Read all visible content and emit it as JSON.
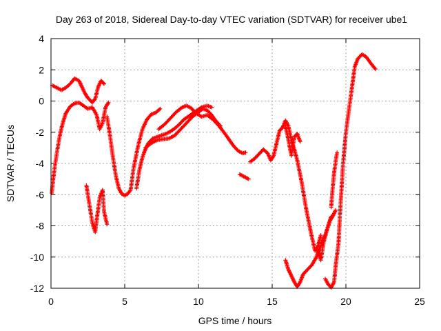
{
  "chart_data": {
    "type": "scatter",
    "title": "Day 263 of 2018, Sidereal Day-to-day VTEC variation (SDTVAR) for receiver ube1",
    "xlabel": "GPS time / hours",
    "ylabel": "SDTVAR / TECUs",
    "xlim": [
      0,
      25
    ],
    "ylim": [
      -12,
      4
    ],
    "xticks": [
      0,
      5,
      10,
      15,
      20,
      25
    ],
    "yticks": [
      -12,
      -10,
      -8,
      -6,
      -4,
      -2,
      0,
      2,
      4
    ],
    "xtick_labels": [
      "0",
      "5",
      "10",
      "15",
      "20",
      "25"
    ],
    "ytick_labels": [
      "-12",
      "-10",
      "-8",
      "-6",
      "-4",
      "-2",
      "0",
      "2",
      "4"
    ],
    "grid": true,
    "marker": "+",
    "color": "#ff0000",
    "series": [
      {
        "x": [
          0.1,
          0.4,
          0.7,
          1.0,
          1.3,
          1.6,
          1.9,
          2.1,
          2.3,
          2.5,
          2.8,
          3.0,
          3.2,
          3.4,
          3.6
        ],
        "y": [
          1.0,
          0.85,
          0.7,
          0.85,
          1.1,
          1.45,
          1.3,
          0.9,
          0.5,
          0.2,
          -0.1,
          0.15,
          0.9,
          1.3,
          1.1
        ]
      },
      {
        "x": [
          0.05,
          0.2,
          0.4,
          0.6,
          0.8,
          1.0,
          1.3,
          1.6,
          1.9,
          2.2,
          2.5,
          2.8,
          3.1,
          3.3,
          3.5,
          3.7,
          3.9
        ],
        "y": [
          -5.9,
          -4.6,
          -3.3,
          -2.2,
          -1.4,
          -0.8,
          -0.35,
          -0.15,
          -0.1,
          -0.3,
          -0.5,
          -0.4,
          -0.9,
          -1.8,
          -1.4,
          -0.4,
          -0.1
        ]
      },
      {
        "x": [
          3.8,
          4.0,
          4.2,
          4.4,
          4.6,
          4.8,
          5.0,
          5.2,
          5.4,
          5.6,
          5.9,
          6.2,
          6.5,
          6.8,
          7.1,
          7.4
        ],
        "y": [
          -1.0,
          -2.2,
          -3.6,
          -4.8,
          -5.6,
          -5.95,
          -6.05,
          -5.95,
          -5.7,
          -4.3,
          -2.9,
          -1.8,
          -1.2,
          -0.85,
          -0.75,
          -0.5
        ]
      },
      {
        "x": [
          2.4,
          2.6,
          2.8,
          3.0,
          3.1,
          3.3,
          3.5,
          3.6,
          3.8
        ],
        "y": [
          -5.4,
          -6.6,
          -7.8,
          -8.4,
          -7.6,
          -6.2,
          -5.7,
          -7.1,
          -7.9
        ]
      },
      {
        "x": [
          5.8,
          6.0,
          6.2,
          6.4,
          6.6,
          6.9,
          7.2,
          7.5,
          7.8,
          8.1,
          8.4,
          8.7,
          9.0,
          9.3,
          9.6,
          9.9,
          10.2,
          10.6,
          10.9
        ],
        "y": [
          -5.6,
          -4.4,
          -3.6,
          -3.1,
          -2.7,
          -2.4,
          -2.3,
          -2.2,
          -2.1,
          -1.95,
          -1.75,
          -1.5,
          -1.2,
          -1.0,
          -0.8,
          -0.6,
          -0.4,
          -0.3,
          -0.4
        ]
      },
      {
        "x": [
          7.3,
          7.7,
          8.1,
          8.5,
          8.9,
          9.2,
          9.5,
          9.8,
          10.2,
          10.6,
          11.0,
          11.4,
          11.8,
          12.1,
          12.4,
          12.7,
          13.0,
          13.2
        ],
        "y": [
          -1.8,
          -1.5,
          -1.1,
          -0.7,
          -0.4,
          -0.3,
          -0.45,
          -0.75,
          -1.0,
          -0.9,
          -1.2,
          -1.6,
          -2.1,
          -2.5,
          -2.9,
          -3.2,
          -3.35,
          -3.3
        ]
      },
      {
        "x": [
          6.4,
          6.8,
          7.2,
          7.6,
          8.0,
          8.4,
          8.8,
          9.2,
          9.6,
          10.0,
          10.3,
          10.6,
          10.9,
          11.2,
          11.5
        ],
        "y": [
          -3.0,
          -2.7,
          -2.5,
          -2.45,
          -2.4,
          -2.2,
          -1.8,
          -1.4,
          -1.0,
          -0.7,
          -0.5,
          -0.6,
          -0.9,
          -1.3,
          -1.6
        ]
      },
      {
        "x": [
          12.8,
          13.0,
          13.2,
          13.4
        ],
        "y": [
          -4.7,
          -4.8,
          -4.9,
          -5.0
        ]
      },
      {
        "x": [
          13.5,
          13.8,
          14.1,
          14.4,
          14.7,
          14.9,
          15.1,
          15.3,
          15.5,
          15.7,
          15.9,
          16.1,
          16.3,
          16.5,
          16.7,
          17.0,
          17.3,
          17.6,
          17.9,
          18.1,
          18.3
        ],
        "y": [
          -3.9,
          -3.7,
          -3.4,
          -3.1,
          -3.35,
          -3.8,
          -3.5,
          -2.7,
          -1.9,
          -1.7,
          -1.25,
          -1.6,
          -2.5,
          -3.1,
          -3.8,
          -5.2,
          -6.9,
          -8.3,
          -9.6,
          -9.3,
          -8.6
        ]
      },
      {
        "x": [
          15.9,
          16.1,
          16.3,
          16.5,
          16.7,
          16.9
        ],
        "y": [
          -1.6,
          -2.5,
          -3.5,
          -2.3,
          -2.1,
          -2.6
        ]
      },
      {
        "x": [
          15.9,
          16.1,
          16.3,
          16.5,
          16.7,
          16.9,
          17.1,
          17.4,
          17.7,
          18.0,
          18.2,
          18.4,
          18.6,
          18.8,
          19.0
        ],
        "y": [
          -10.2,
          -10.8,
          -11.2,
          -11.6,
          -11.9,
          -11.6,
          -11.1,
          -10.8,
          -10.5,
          -10.0,
          -9.5,
          -9.0,
          -8.6,
          -8.0,
          -7.4
        ]
      },
      {
        "x": [
          18.1,
          18.3,
          18.5,
          18.7,
          18.9,
          19.1,
          19.3
        ],
        "y": [
          -9.6,
          -10.2,
          -9.0,
          -8.3,
          -7.7,
          -7.4,
          -7.0
        ]
      },
      {
        "x": [
          18.6,
          18.8,
          19.0,
          19.2,
          19.3,
          19.5,
          19.6,
          19.8,
          20.0,
          20.2,
          20.4,
          20.6,
          20.8,
          21.1,
          21.4,
          21.7,
          22.0
        ],
        "y": [
          -11.4,
          -11.75,
          -11.95,
          -11.6,
          -10.6,
          -9.1,
          -7.2,
          -4.1,
          -2.0,
          -0.6,
          0.8,
          2.2,
          2.7,
          3.0,
          2.8,
          2.4,
          2.05
        ]
      },
      {
        "x": [
          19.0,
          19.1,
          19.2,
          19.3,
          19.4
        ],
        "y": [
          -6.8,
          -5.6,
          -4.6,
          -3.9,
          -3.3
        ]
      }
    ]
  }
}
